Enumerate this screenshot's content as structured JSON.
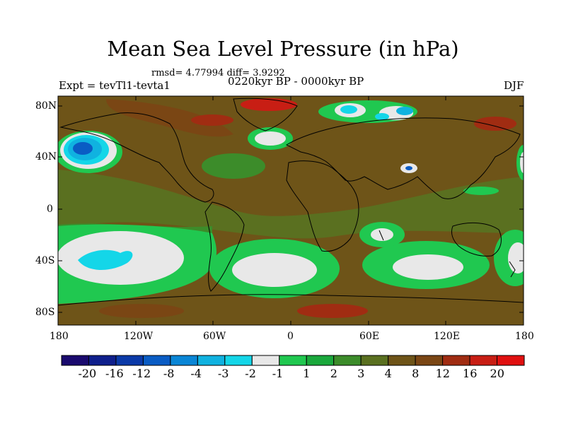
{
  "title": "Mean Sea Level Pressure (in hPa)",
  "stats": "rmsd= 4.77994 diff= 3.9292",
  "expt": "Expt = tevTl1-tevta1",
  "period": "0220kyr BP - 0000kyr BP",
  "season": "DJF",
  "lat_labels": [
    "80N",
    "40N",
    "0",
    "40S",
    "80S"
  ],
  "lon_labels": [
    "180",
    "120W",
    "60W",
    "0",
    "60E",
    "120E",
    "180"
  ],
  "colorbar": {
    "labels": [
      "-20",
      "-16",
      "-12",
      "-8",
      "-4",
      "-3",
      "-2",
      "-1",
      "1",
      "2",
      "3",
      "4",
      "8",
      "12",
      "16",
      "20"
    ],
    "colors": [
      "#1a0a6e",
      "#0f1f8c",
      "#0b3aa8",
      "#0a5cc4",
      "#0a86d6",
      "#10b2e0",
      "#14d6e8",
      "#e8e8e8",
      "#20c850",
      "#1aa83c",
      "#3c8c2a",
      "#5a7020",
      "#6e5418",
      "#7a4614",
      "#a02c12",
      "#c81e14",
      "#e01010"
    ]
  },
  "colors": {
    "background": "#6e5418",
    "land": "#6e5418"
  }
}
